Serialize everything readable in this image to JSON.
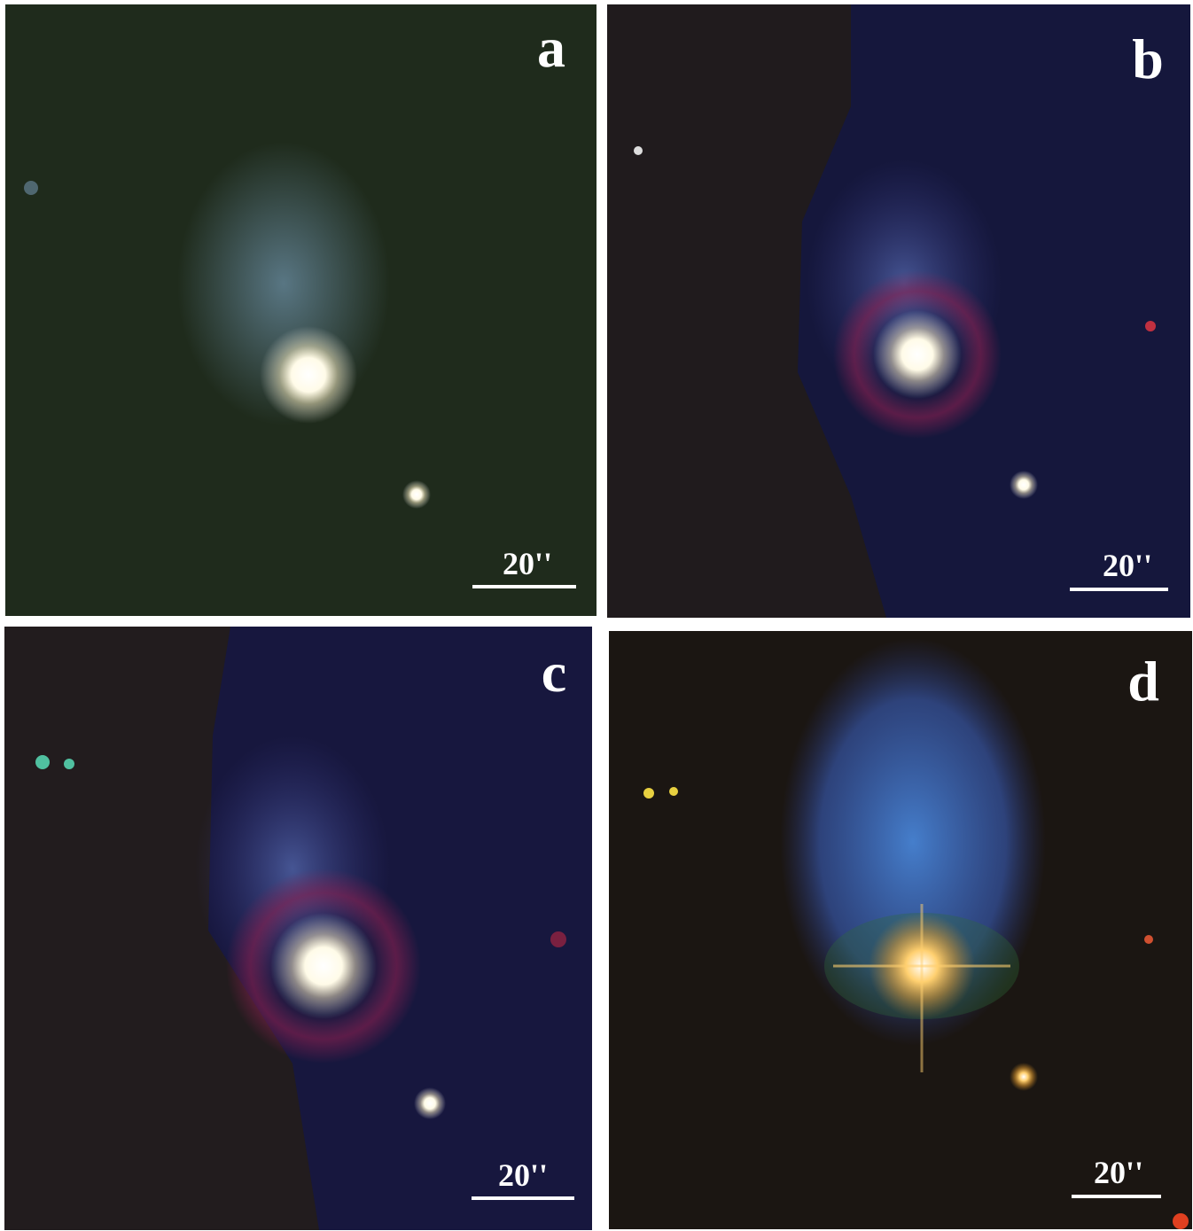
{
  "panels": [
    {
      "label": "a",
      "scale": "20''"
    },
    {
      "label": "b",
      "scale": "20''"
    },
    {
      "label": "c",
      "scale": "20''"
    },
    {
      "label": "d",
      "scale": "20''"
    }
  ]
}
